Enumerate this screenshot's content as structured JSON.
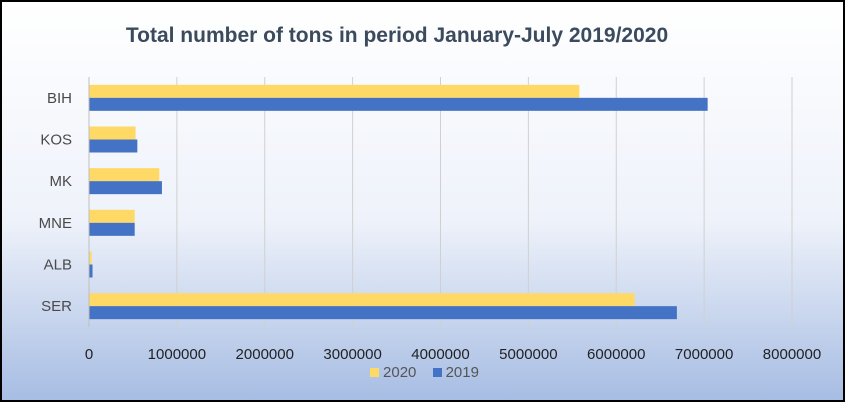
{
  "chart_data": {
    "type": "bar",
    "orientation": "horizontal",
    "title": "Total number of tons in period January-July 2019/2020",
    "categories": [
      "BIH",
      "KOS",
      "MK",
      "MNE",
      "ALB",
      "SER"
    ],
    "series": [
      {
        "name": "2020",
        "color": "#ffd966",
        "values": [
          5580000,
          530000,
          800000,
          520000,
          30000,
          6210000
        ]
      },
      {
        "name": "2019",
        "color": "#4472c4",
        "values": [
          7040000,
          550000,
          830000,
          520000,
          40000,
          6690000
        ]
      }
    ],
    "xlim": [
      0,
      8000000
    ],
    "xticks": [
      0,
      1000000,
      2000000,
      3000000,
      4000000,
      5000000,
      6000000,
      7000000,
      8000000
    ],
    "grid": true,
    "legend_position": "bottom"
  }
}
